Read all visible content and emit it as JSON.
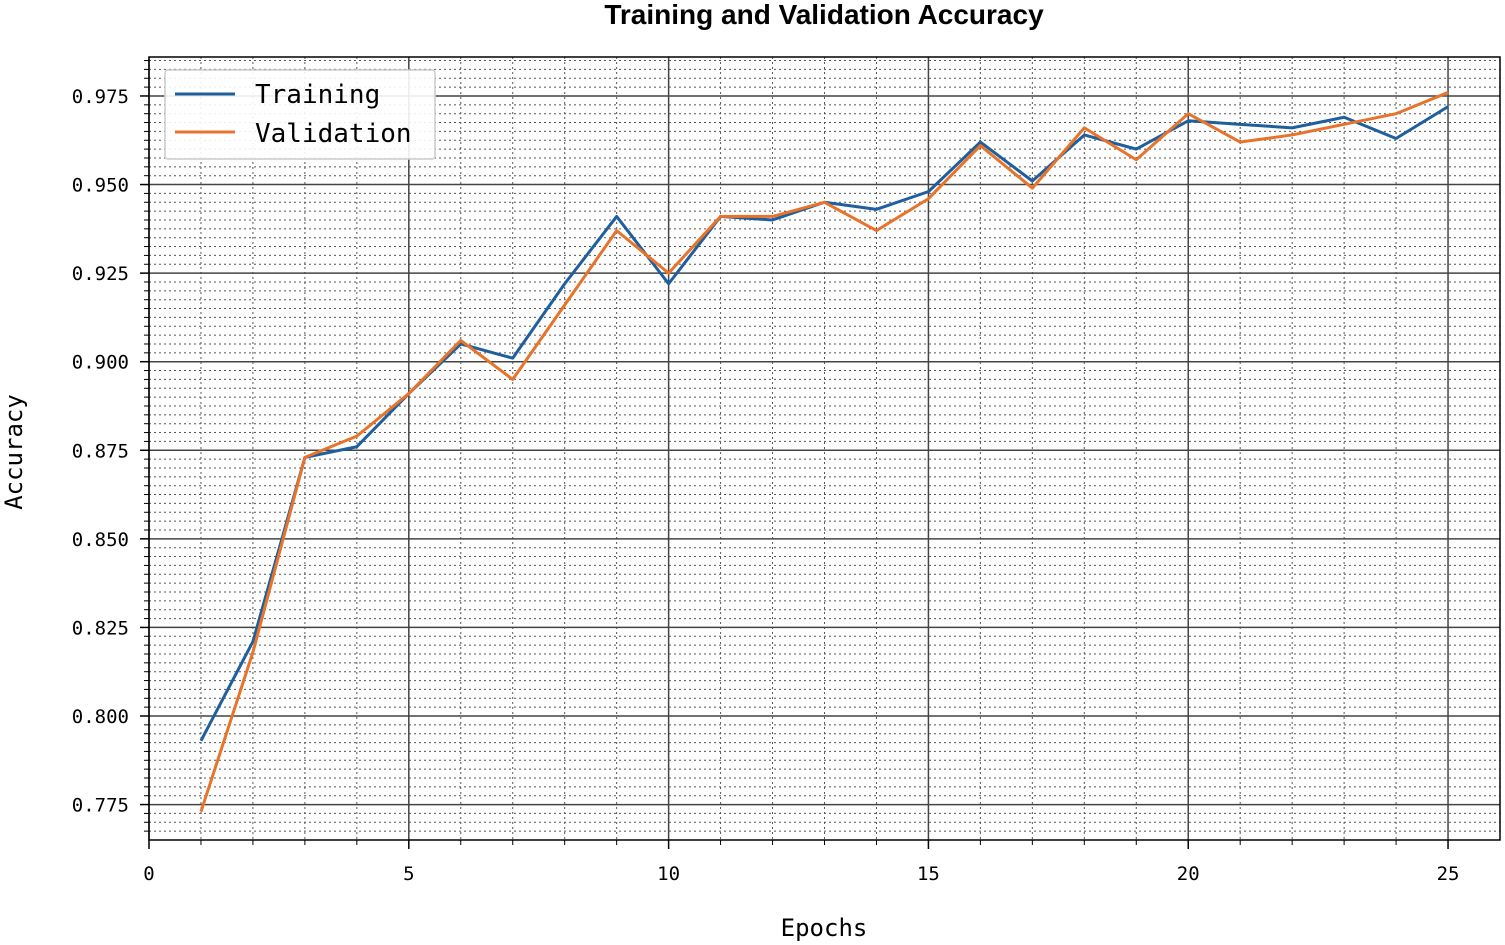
{
  "chart_data": {
    "type": "line",
    "title": "Training and Validation Accuracy",
    "xlabel": "Epochs",
    "ylabel": "Accuracy",
    "xlim": [
      0,
      26
    ],
    "ylim": [
      0.765,
      0.986
    ],
    "xticks": [
      0,
      5,
      10,
      15,
      20,
      25
    ],
    "yticks": [
      0.775,
      0.8,
      0.825,
      0.85,
      0.875,
      0.9,
      0.925,
      0.95,
      0.975
    ],
    "x_minor_step": 1,
    "y_minor_step": 0.0025,
    "grid": true,
    "legend_position": "top-left",
    "series": [
      {
        "name": "Training",
        "color": "#1f5f9e",
        "x": [
          1,
          2,
          3,
          4,
          5,
          6,
          7,
          8,
          9,
          10,
          11,
          12,
          13,
          14,
          15,
          16,
          17,
          18,
          19,
          20,
          21,
          22,
          23,
          24,
          25
        ],
        "values": [
          0.793,
          0.821,
          0.873,
          0.876,
          0.891,
          0.905,
          0.901,
          0.922,
          0.941,
          0.922,
          0.941,
          0.94,
          0.945,
          0.943,
          0.948,
          0.962,
          0.951,
          0.964,
          0.96,
          0.968,
          0.967,
          0.966,
          0.969,
          0.963,
          0.972
        ]
      },
      {
        "name": "Validation",
        "color": "#e8732a",
        "x": [
          1,
          2,
          3,
          4,
          5,
          6,
          7,
          8,
          9,
          10,
          11,
          12,
          13,
          14,
          15,
          16,
          17,
          18,
          19,
          20,
          21,
          22,
          23,
          24,
          25
        ],
        "values": [
          0.773,
          0.818,
          0.873,
          0.879,
          0.891,
          0.906,
          0.895,
          0.916,
          0.937,
          0.925,
          0.941,
          0.941,
          0.945,
          0.937,
          0.946,
          0.961,
          0.949,
          0.966,
          0.957,
          0.97,
          0.962,
          0.964,
          0.967,
          0.97,
          0.976
        ]
      }
    ]
  }
}
